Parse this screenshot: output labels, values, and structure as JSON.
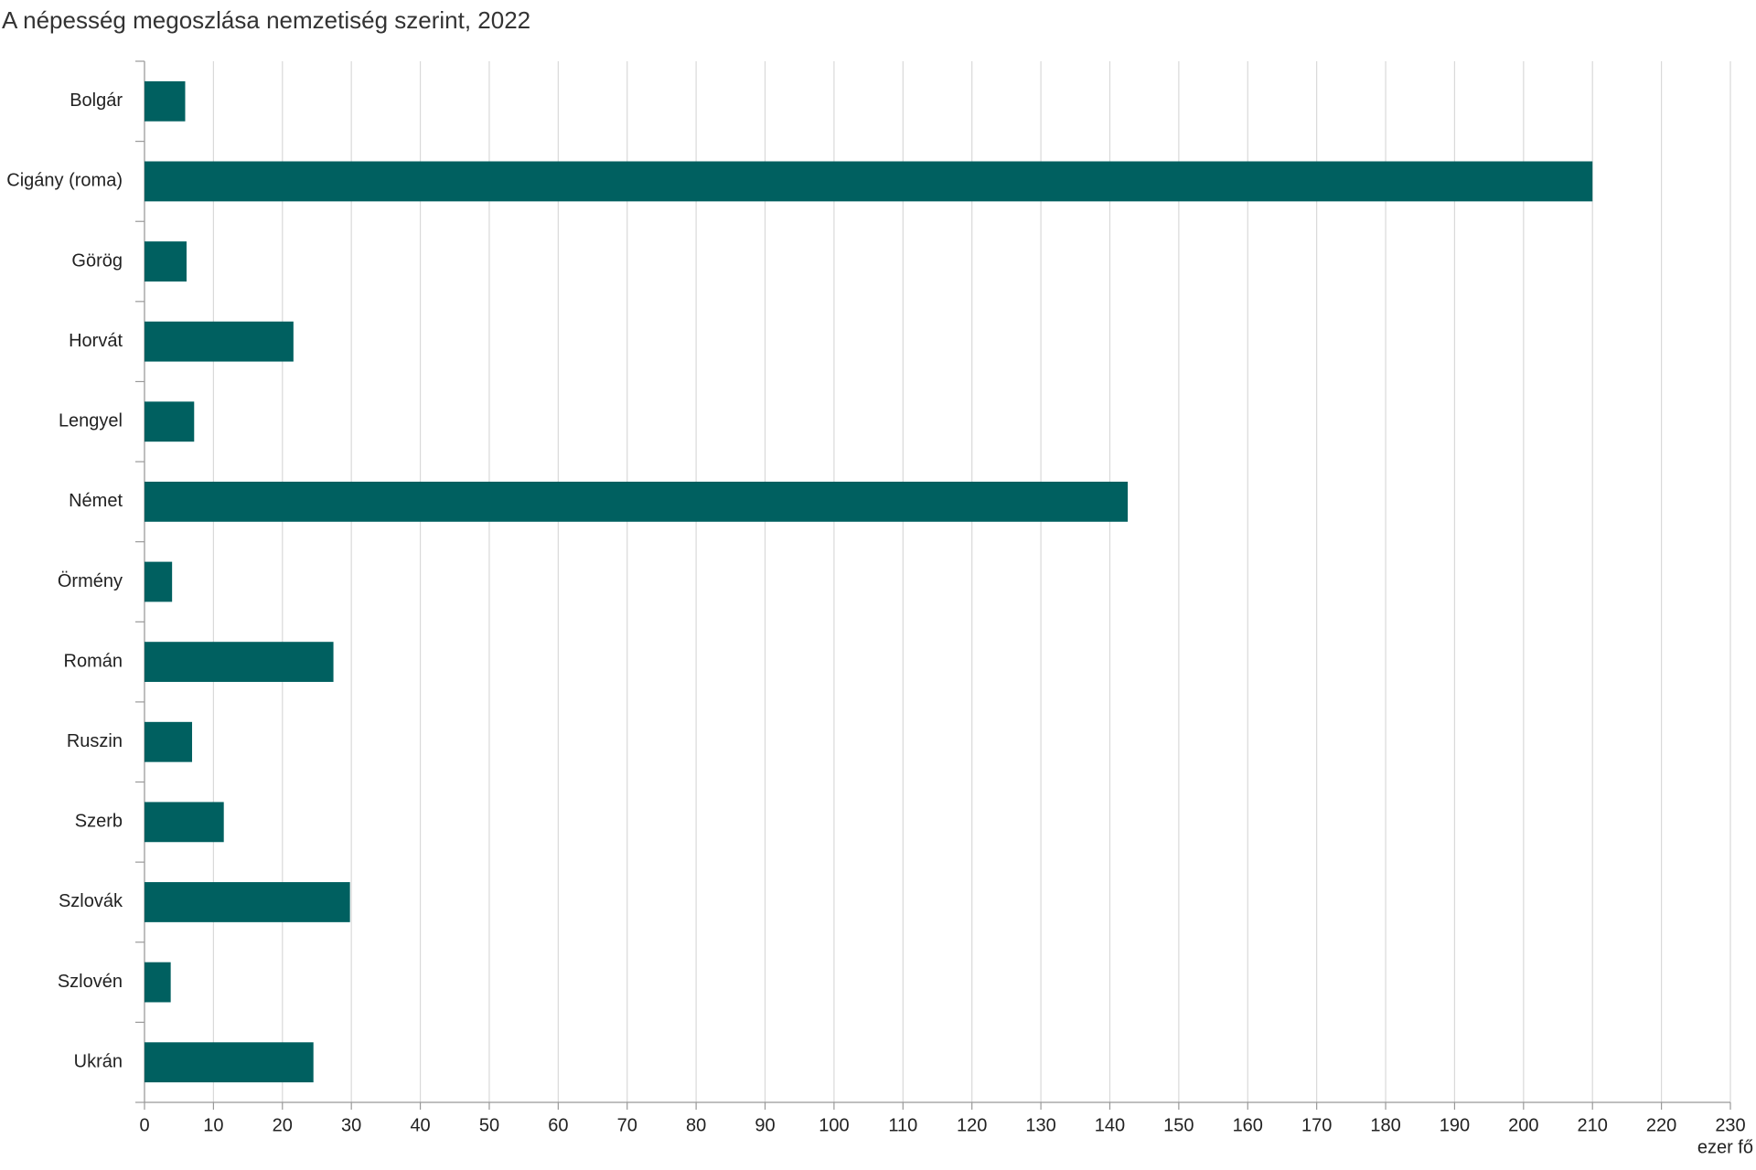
{
  "chart_data": {
    "type": "bar",
    "orientation": "horizontal",
    "title": "A népesség megoszlása nemzetiség szerint, 2022",
    "x_label": "ezer fő",
    "categories": [
      "Bolgár",
      "Cigány (roma)",
      "Görög",
      "Horvát",
      "Lengyel",
      "Német",
      "Örmény",
      "Román",
      "Ruszin",
      "Szerb",
      "Szlovák",
      "Szlovén",
      "Ukrán"
    ],
    "values": [
      5.9,
      210,
      6.1,
      21.6,
      7.2,
      142.6,
      4.0,
      27.4,
      6.9,
      11.5,
      29.8,
      3.8,
      24.5
    ],
    "color": "#006060",
    "xlim": [
      0,
      230
    ],
    "xticks": [
      0,
      10,
      20,
      30,
      40,
      50,
      60,
      70,
      80,
      90,
      100,
      110,
      120,
      130,
      140,
      150,
      160,
      170,
      180,
      190,
      200,
      210,
      220,
      230
    ],
    "grid": true
  }
}
